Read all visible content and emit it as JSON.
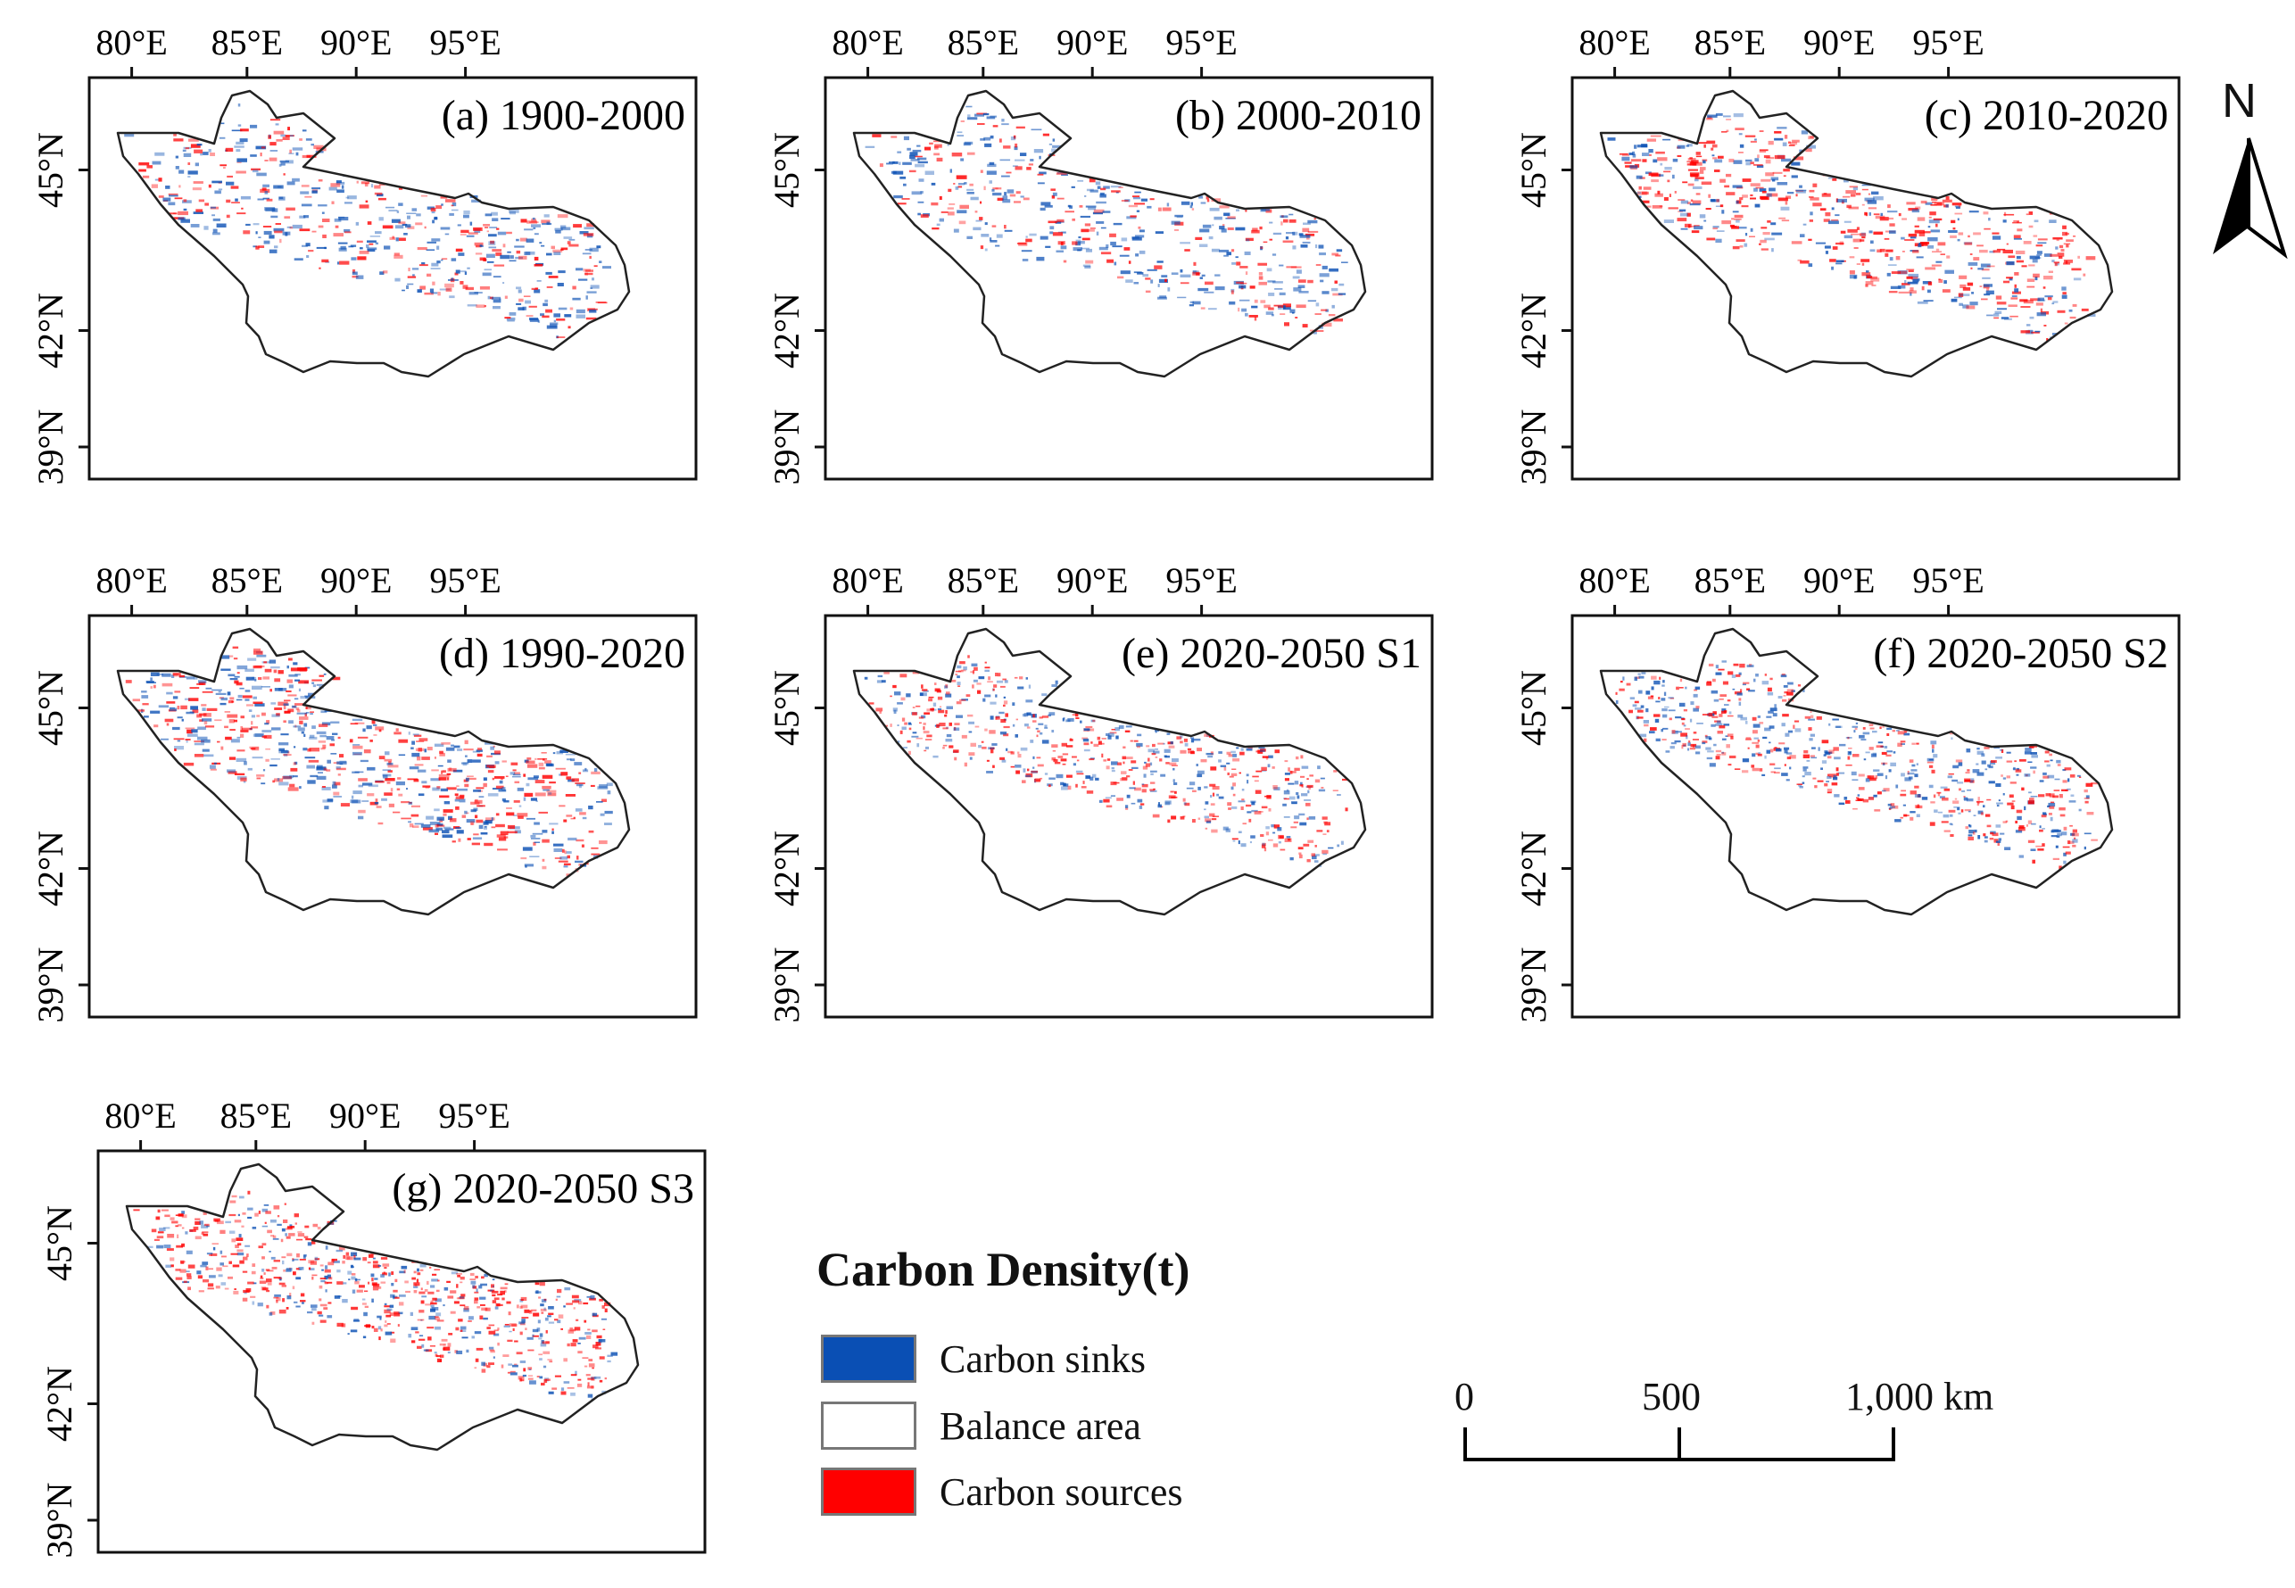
{
  "figure": {
    "lon_ticks": [
      "80°E",
      "85°E",
      "90°E",
      "95°E"
    ],
    "lat_ticks": [
      "45°N",
      "42°N",
      "39°N"
    ],
    "panels": [
      {
        "id": "a",
        "title": "(a) 1900-2000",
        "pattern": "mixed",
        "sink_share": 0.55,
        "intensity": 0.6
      },
      {
        "id": "b",
        "title": "(b) 2000-2010",
        "pattern": "mixed",
        "sink_share": 0.6,
        "intensity": 0.55
      },
      {
        "id": "c",
        "title": "(c) 2010-2020",
        "pattern": "sources",
        "sink_share": 0.35,
        "intensity": 0.7
      },
      {
        "id": "d",
        "title": "(d) 1990-2020",
        "pattern": "mixed",
        "sink_share": 0.5,
        "intensity": 0.8
      },
      {
        "id": "e",
        "title": "(e) 2020-2050 S1",
        "pattern": "speckled",
        "sink_share": 0.45,
        "intensity": 0.7
      },
      {
        "id": "f",
        "title": "(f) 2020-2050 S2",
        "pattern": "speckled",
        "sink_share": 0.5,
        "intensity": 0.75
      },
      {
        "id": "g",
        "title": "(g) 2020-2050 S3",
        "pattern": "speckled",
        "sink_share": 0.35,
        "intensity": 0.8
      }
    ]
  },
  "legend": {
    "title": "Carbon Density(t)",
    "items": [
      {
        "label": "Carbon sinks",
        "color": "#0a4fb4"
      },
      {
        "label": "Balance area",
        "color": "#ffffff"
      },
      {
        "label": "Carbon sources",
        "color": "#ff0000"
      }
    ]
  },
  "scale_bar": {
    "labels": [
      "0",
      "500",
      "1,000 km"
    ]
  },
  "north_arrow": {
    "label": "N"
  },
  "colors": {
    "sink": "#0a4fb4",
    "source": "#ff0000",
    "frame": "#111111",
    "outline": "#222222"
  }
}
